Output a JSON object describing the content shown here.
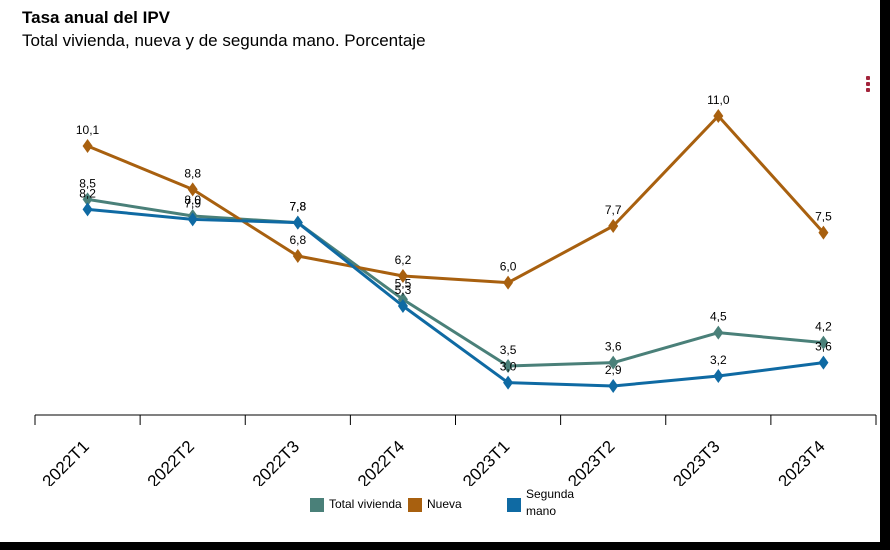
{
  "header": {
    "title": "Tasa anual del IPV",
    "subtitle": "Total vivienda, nueva y de segunda mano. Porcentaje"
  },
  "menu": {
    "icon": "kebab-menu-icon"
  },
  "chart_data": {
    "type": "line",
    "title": "Tasa anual del IPV",
    "subtitle": "Total vivienda, nueva y de segunda mano. Porcentaje",
    "categories": [
      "2022T1",
      "2022T2",
      "2022T3",
      "2022T4",
      "2023T1",
      "2023T2",
      "2023T3",
      "2023T4"
    ],
    "ylim": [
      1.5,
      12.0
    ],
    "grid": false,
    "marker": "diamond",
    "legend_position": "bottom",
    "series": [
      {
        "name": "Total vivienda",
        "color": "#4a8079",
        "values": [
          8.5,
          8.0,
          7.8,
          5.5,
          3.5,
          3.6,
          4.5,
          4.2
        ],
        "labels": [
          "8,5",
          "8,0",
          "7,8",
          "5,5",
          "3,5",
          "3,6",
          "4,5",
          "4,2"
        ]
      },
      {
        "name": "Nueva",
        "color": "#a8600f",
        "values": [
          10.1,
          8.8,
          6.8,
          6.2,
          6.0,
          7.7,
          11.0,
          7.5
        ],
        "labels": [
          "10,1",
          "8,8",
          "6,8",
          "6,2",
          "6,0",
          "7,7",
          "11,0",
          "7,5"
        ]
      },
      {
        "name": "Segunda mano",
        "color": "#0f6aa3",
        "values": [
          8.2,
          7.9,
          7.8,
          5.3,
          3.0,
          2.9,
          3.2,
          3.6
        ],
        "labels": [
          "8,2",
          "7,9",
          "7,8",
          "5,3",
          "3,0",
          "2,9",
          "3,2",
          "3,6"
        ]
      }
    ]
  },
  "legend": {
    "items": [
      {
        "label": "Total vivienda",
        "color": "#4a8079"
      },
      {
        "label": "Nueva",
        "color": "#a8600f"
      },
      {
        "label": "Segunda mano",
        "color": "#0f6aa3"
      }
    ]
  }
}
